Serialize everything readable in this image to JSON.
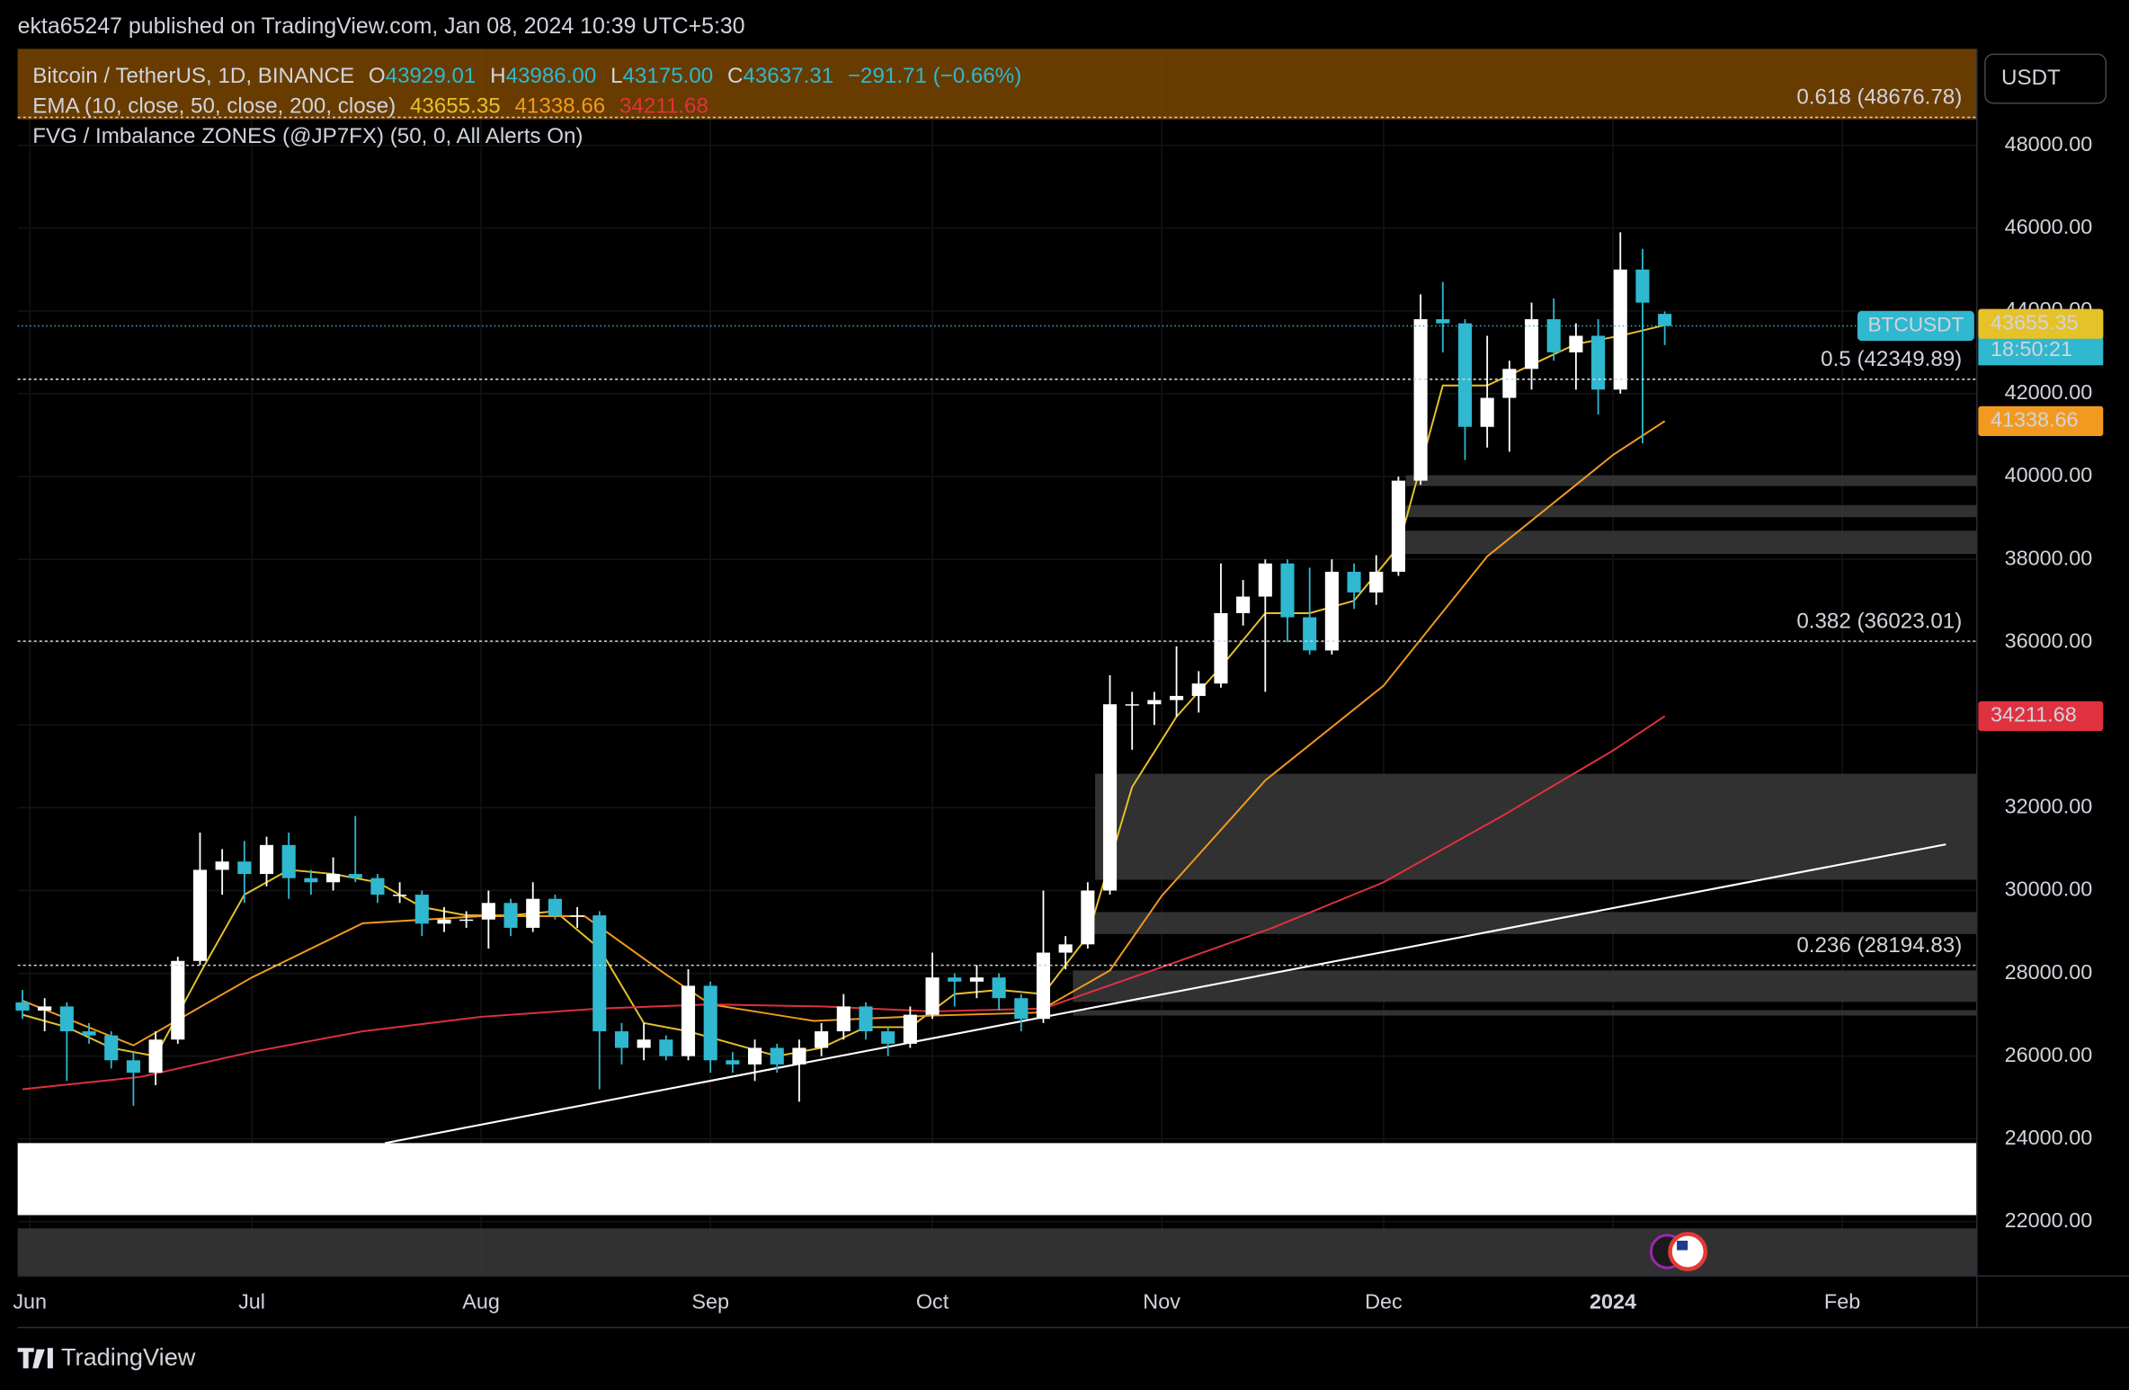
{
  "header": {
    "byline": "ekta65247 published on TradingView.com, Jan 08, 2024 10:39 UTC+5:30"
  },
  "footer": {
    "logo": "TradingView"
  },
  "chart_data": {
    "type": "candlestick",
    "currency": "USDT",
    "legend": {
      "symbol": "Bitcoin / TetherUS, 1D, BINANCE",
      "ohlc": [
        [
          "O",
          "43929.01"
        ],
        [
          "H",
          "43986.00"
        ],
        [
          "L",
          "43175.00"
        ],
        [
          "C",
          "43637.31"
        ]
      ],
      "change": "−291.71 (−0.66%)",
      "ema_name": "EMA (10, close, 50, close, 200, close)",
      "fvg_name": "FVG / Imbalance ZONES (@JP7FX) (50, 0, All Alerts On)"
    },
    "symbol_tag": "BTCUSDT",
    "countdown": "18:50:21",
    "up_color": "#ffffff",
    "down_color": "#2fb8cf",
    "grid": true,
    "xlim": [
      -1.65,
      263.2
    ],
    "ylim": [
      20690,
      50330
    ],
    "xticks": [
      {
        "value": 0,
        "label": "Jun"
      },
      {
        "value": 30,
        "label": "Jul"
      },
      {
        "value": 61,
        "label": "Aug"
      },
      {
        "value": 92,
        "label": "Sep"
      },
      {
        "value": 122,
        "label": "Oct"
      },
      {
        "value": 153,
        "label": "Nov"
      },
      {
        "value": 183,
        "label": "Dec"
      },
      {
        "value": 214,
        "label": "2024",
        "bold": true
      },
      {
        "value": 245,
        "label": "Feb"
      }
    ],
    "yticks": [
      {
        "value": 22000,
        "label": "22000.00"
      },
      {
        "value": 24000,
        "label": "24000.00"
      },
      {
        "value": 26000,
        "label": "26000.00"
      },
      {
        "value": 28000,
        "label": "28000.00"
      },
      {
        "value": 30000,
        "label": "30000.00"
      },
      {
        "value": 32000,
        "label": "32000.00"
      },
      {
        "value": 34000,
        "label": "34000.00"
      },
      {
        "value": 36000,
        "label": "36000.00"
      },
      {
        "value": 38000,
        "label": "38000.00"
      },
      {
        "value": 40000,
        "label": "40000.00"
      },
      {
        "value": 42000,
        "label": "42000.00"
      },
      {
        "value": 44000,
        "label": "44000.00"
      },
      {
        "value": 46000,
        "label": "46000.00"
      },
      {
        "value": 48000,
        "label": "48000.00"
      }
    ],
    "candles": {
      "x": [
        -1,
        2,
        5,
        8,
        11,
        14,
        17,
        20,
        23,
        26,
        29,
        32,
        35,
        38,
        41,
        44,
        47,
        50,
        53,
        56,
        59,
        62,
        65,
        68,
        71,
        74,
        77,
        80,
        83,
        86,
        89,
        92,
        95,
        98,
        101,
        104,
        107,
        110,
        113,
        116,
        119,
        122,
        125,
        128,
        131,
        134,
        137,
        140,
        143,
        146,
        149,
        152,
        155,
        158,
        161,
        164,
        167,
        170,
        173,
        176,
        179,
        182,
        185,
        188,
        191,
        194,
        197,
        200,
        203,
        206,
        209,
        212,
        215,
        218,
        221
      ],
      "open": [
        27300,
        27100,
        27200,
        26600,
        26500,
        25900,
        25600,
        26400,
        28300,
        30500,
        30700,
        30400,
        31100,
        30300,
        30200,
        30400,
        30300,
        29900,
        29900,
        29200,
        29300,
        29300,
        29700,
        29100,
        29800,
        29400,
        29400,
        26600,
        26200,
        26400,
        26000,
        27700,
        25900,
        25800,
        26200,
        25800,
        26200,
        26600,
        27200,
        26600,
        26300,
        27000,
        27900,
        27800,
        27900,
        27400,
        26900,
        28500,
        28700,
        30000,
        34500,
        34500,
        34600,
        34700,
        35000,
        36700,
        37100,
        37900,
        36600,
        35800,
        37700,
        37200,
        37700,
        39900,
        43800,
        43700,
        41200,
        41900,
        42600,
        43800,
        43000,
        43400,
        42100,
        45000,
        43929.01
      ],
      "high": [
        27600,
        27400,
        27300,
        26800,
        26600,
        26100,
        26600,
        28400,
        31400,
        31000,
        31200,
        31300,
        31400,
        30500,
        30800,
        31800,
        30400,
        30200,
        30000,
        29600,
        29500,
        30000,
        29800,
        30200,
        29900,
        29600,
        29500,
        26800,
        26800,
        26500,
        28100,
        27800,
        26100,
        26400,
        26300,
        26400,
        26800,
        27500,
        27300,
        26700,
        27200,
        28500,
        28000,
        28200,
        28000,
        27500,
        30000,
        28900,
        30200,
        35200,
        34800,
        34800,
        35900,
        35300,
        37900,
        37500,
        38000,
        38000,
        37800,
        38000,
        37900,
        38100,
        40000,
        44400,
        44700,
        43800,
        43400,
        42800,
        44200,
        44300,
        43700,
        43800,
        45900,
        45500,
        43986
      ],
      "low": [
        26900,
        26600,
        25400,
        26300,
        25700,
        24800,
        25300,
        26300,
        28200,
        29900,
        29700,
        30100,
        29800,
        29900,
        30000,
        30200,
        29700,
        29700,
        28900,
        29000,
        29100,
        28600,
        28900,
        29000,
        29300,
        29100,
        25200,
        25800,
        25900,
        25900,
        25900,
        25600,
        25600,
        25400,
        25600,
        24900,
        26000,
        26400,
        26400,
        26000,
        26200,
        26900,
        27200,
        27400,
        27100,
        26600,
        26800,
        28100,
        28600,
        29900,
        33400,
        34000,
        34200,
        34300,
        34900,
        36400,
        34800,
        36000,
        35700,
        35700,
        36800,
        36900,
        37600,
        39800,
        43000,
        40400,
        40700,
        40600,
        42100,
        42800,
        42100,
        41500,
        42000,
        40800,
        43175
      ],
      "close": [
        27100,
        27200,
        26600,
        26500,
        25900,
        25600,
        26400,
        28300,
        30500,
        30700,
        30400,
        31100,
        30300,
        30200,
        30400,
        30300,
        29900,
        29900,
        29200,
        29300,
        29300,
        29700,
        29100,
        29800,
        29400,
        29400,
        26600,
        26200,
        26400,
        26000,
        27700,
        25900,
        25800,
        26200,
        25800,
        26200,
        26600,
        27200,
        26600,
        26300,
        27000,
        27900,
        27800,
        27900,
        27400,
        26900,
        28500,
        28700,
        30000,
        34500,
        34500,
        34600,
        34700,
        35000,
        36700,
        37100,
        37900,
        36600,
        35800,
        37700,
        37200,
        37700,
        39900,
        43800,
        43700,
        41200,
        41900,
        42600,
        43800,
        43000,
        43400,
        42100,
        45000,
        44200,
        43637.31
      ]
    },
    "ema": [
      {
        "color": "#e6c229",
        "badge_text_color": "#000000",
        "x": [
          -1,
          5,
          11,
          17,
          23,
          29,
          35,
          41,
          47,
          53,
          59,
          65,
          71,
          77,
          83,
          89,
          95,
          101,
          107,
          113,
          119,
          125,
          131,
          137,
          143,
          149,
          155,
          161,
          167,
          173,
          179,
          185,
          191,
          197,
          203,
          209,
          215,
          221
        ],
        "values": [
          27000,
          26700,
          26200,
          26000,
          28000,
          29900,
          30500,
          30400,
          30200,
          29600,
          29400,
          29400,
          29500,
          28600,
          26800,
          26600,
          26300,
          26000,
          26200,
          26700,
          26700,
          27500,
          27600,
          27500,
          28900,
          32500,
          34200,
          35400,
          36700,
          36700,
          37000,
          38300,
          42200,
          42200,
          42700,
          43200,
          43400,
          43655.35
        ]
      },
      {
        "color": "#f29a1f",
        "badge_text_color": "#000000",
        "x": [
          -1,
          14,
          30,
          45,
          61,
          75,
          86,
          92,
          106,
          122,
          136,
          146,
          153,
          167,
          183,
          197,
          214,
          221
        ],
        "values": [
          27340,
          26260,
          27900,
          29210,
          29380,
          29380,
          27970,
          27250,
          26850,
          26980,
          27050,
          28070,
          29870,
          32660,
          34950,
          38070,
          40520,
          41338.66
        ]
      },
      {
        "color": "#e0313f",
        "badge_text_color": "#ffffff",
        "x": [
          -1,
          15,
          30,
          45,
          61,
          77,
          92,
          107,
          122,
          137,
          153,
          168,
          183,
          199,
          214,
          221
        ],
        "values": [
          25200,
          25500,
          26100,
          26600,
          26950,
          27150,
          27250,
          27200,
          27080,
          27150,
          28150,
          29100,
          30200,
          31800,
          33380,
          34211.68
        ]
      }
    ],
    "zones": [
      {
        "x0": 186,
        "y0": 39770,
        "y1": 40030,
        "color": "#3a3a3a"
      },
      {
        "x0": 186,
        "y0": 39020,
        "y1": 39310,
        "color": "#3a3a3a"
      },
      {
        "x0": 185,
        "y0": 38130,
        "y1": 38690,
        "color": "#3a3a3a"
      },
      {
        "x0": 144,
        "y0": 30260,
        "y1": 32820,
        "color": "#3a3a3a"
      },
      {
        "x0": 143,
        "y0": 28950,
        "y1": 29480,
        "color": "#3a3a3a"
      },
      {
        "x0": 141,
        "y0": 27310,
        "y1": 28070,
        "color": "#3a3a3a"
      },
      {
        "x0": 141,
        "y0": 26980,
        "y1": 27110,
        "color": "#3a3a3a"
      },
      {
        "x0": -1.65,
        "y0": 22160,
        "y1": 23900,
        "color": "#ffffff"
      },
      {
        "x0": -1.65,
        "y0": 20690,
        "y1": 21840,
        "color": "#3a3a3a"
      }
    ],
    "fib_levels": [
      {
        "value": 48676.78,
        "label": "0.618 (48676.78)"
      },
      {
        "value": 42349.89,
        "label": "0.5 (42349.89)"
      },
      {
        "value": 36023.01,
        "label": "0.382 (36023.01)"
      },
      {
        "value": 28194.83,
        "label": "0.236 (28194.83)"
      }
    ],
    "trendline": {
      "x": [
        48,
        259
      ],
      "values": [
        23900,
        31115
      ],
      "color": "#ffffff"
    }
  }
}
